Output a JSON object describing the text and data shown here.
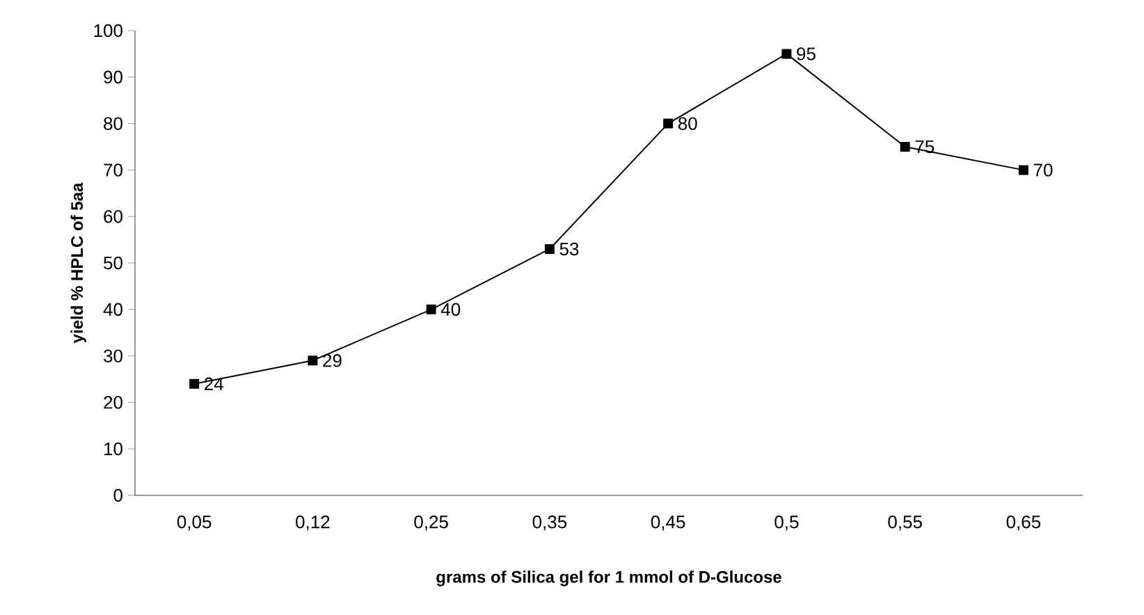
{
  "chart_data": {
    "type": "line",
    "xlabel": "grams of Silica gel for 1 mmol of D-Glucose",
    "ylabel": "yield % HPLC of 5aa",
    "categories": [
      "0,05",
      "0,12",
      "0,25",
      "0,35",
      "0,45",
      "0,5",
      "0,55",
      "0,65"
    ],
    "series": [
      {
        "color": "#000000",
        "values": [
          24,
          29,
          40,
          53,
          80,
          95,
          75,
          70
        ]
      }
    ],
    "ylim": [
      0,
      100
    ],
    "yticks": [
      0,
      10,
      20,
      30,
      40,
      50,
      60,
      70,
      80,
      90,
      100
    ],
    "data_labels": true,
    "marker": "square",
    "line_style": "solid"
  }
}
